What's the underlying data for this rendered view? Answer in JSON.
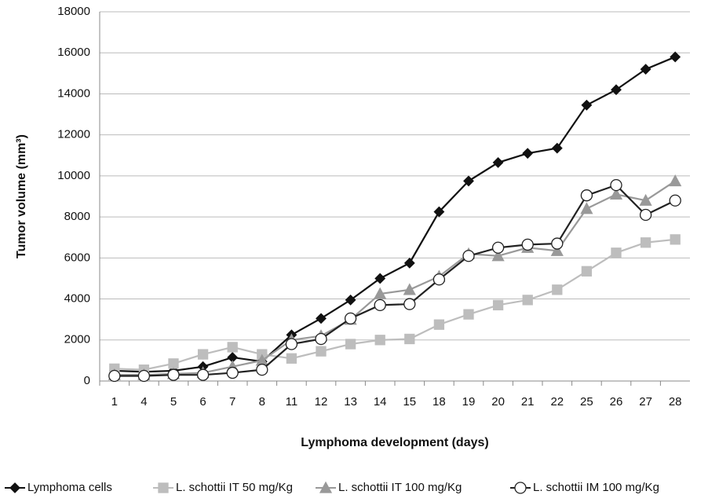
{
  "chart_data": {
    "type": "line",
    "y_label": "Tumor volume (mm³)",
    "x_label": "Lymphoma development (days)",
    "categories": [
      "1",
      "4",
      "5",
      "6",
      "7",
      "8",
      "11",
      "12",
      "13",
      "14",
      "15",
      "18",
      "19",
      "20",
      "21",
      "22",
      "25",
      "26",
      "27",
      "28"
    ],
    "series": [
      {
        "name": "Lymphoma cells",
        "color": "#111111",
        "marker": "diamond",
        "marker_fill": "#111111",
        "values": [
          500,
          450,
          500,
          700,
          1150,
          950,
          2250,
          3050,
          3950,
          5000,
          5750,
          8250,
          9750,
          10650,
          11100,
          11350,
          13450,
          14200,
          15200,
          15800
        ]
      },
      {
        "name": "L. schottii IT 50 mg/Kg",
        "color": "#bdbdbd",
        "marker": "square",
        "marker_fill": "#bdbdbd",
        "values": [
          600,
          550,
          850,
          1300,
          1650,
          1300,
          1100,
          1450,
          1800,
          2000,
          2050,
          2750,
          3250,
          3700,
          3950,
          4450,
          5350,
          6250,
          6750,
          6900
        ]
      },
      {
        "name": "L. schottii IT 100 mg/Kg",
        "color": "#999999",
        "marker": "triangle",
        "marker_fill": "#999999",
        "values": [
          300,
          300,
          350,
          400,
          700,
          1000,
          2000,
          2200,
          3000,
          4250,
          4450,
          5100,
          6200,
          6100,
          6500,
          6350,
          8400,
          9100,
          8800,
          9750
        ]
      },
      {
        "name": "L. schottii IM 100 mg/Kg",
        "color": "#222222",
        "marker": "circle",
        "marker_fill": "#ffffff",
        "values": [
          250,
          250,
          300,
          300,
          400,
          550,
          1800,
          2050,
          3050,
          3700,
          3750,
          4950,
          6100,
          6500,
          6650,
          6700,
          9050,
          9550,
          8100,
          8800
        ]
      }
    ],
    "ylim": [
      0,
      18000
    ],
    "yticks": [
      0,
      2000,
      4000,
      6000,
      8000,
      10000,
      12000,
      14000,
      16000,
      18000
    ],
    "grid": true,
    "legend": "bottom"
  }
}
